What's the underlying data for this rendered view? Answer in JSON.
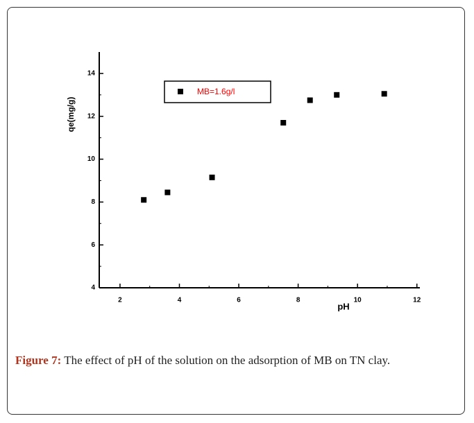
{
  "chart_data": {
    "type": "scatter",
    "x_label": "pH",
    "y_label": "qe(mg/g)",
    "xlim": [
      1.3,
      12.1
    ],
    "ylim": [
      4,
      15
    ],
    "xticks": [
      2,
      4,
      6,
      8,
      10,
      12
    ],
    "yticks": [
      4,
      6,
      8,
      10,
      12,
      14
    ],
    "series": [
      {
        "name": "MB=1.6g/l",
        "color": "#000000",
        "x": [
          2.8,
          3.6,
          5.1,
          7.5,
          8.4,
          9.3,
          10.9
        ],
        "values": [
          8.1,
          8.45,
          9.15,
          11.7,
          12.75,
          13.0,
          13.05
        ]
      }
    ],
    "legend_text_color": "#ff0000"
  },
  "caption": {
    "label": "Figure 7:",
    "text": "The effect of pH of the solution on the adsorption of MB on TN clay."
  }
}
